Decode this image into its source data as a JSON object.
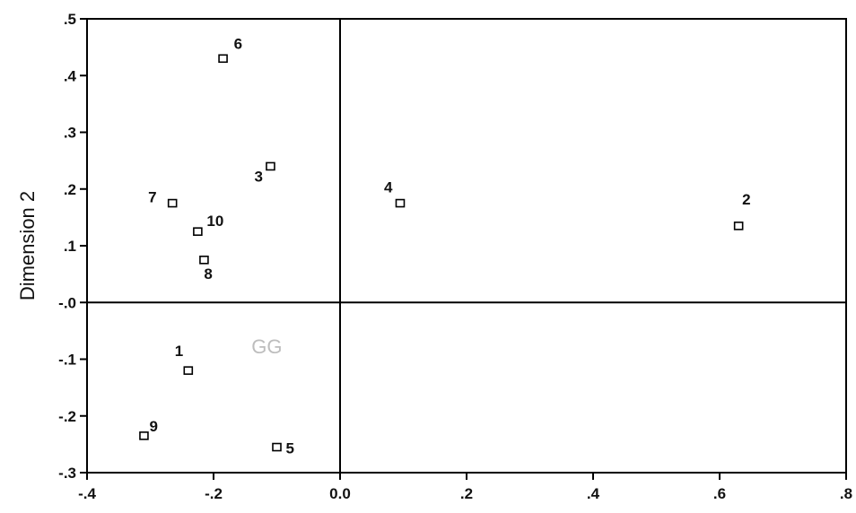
{
  "chart_data": {
    "type": "scatter",
    "title": "",
    "xlabel": "",
    "ylabel": "Dimension 2",
    "xlim": [
      -0.4,
      0.8
    ],
    "ylim": [
      -0.3,
      0.5
    ],
    "grid": false,
    "reference_lines": {
      "x": 0,
      "y": 0
    },
    "x_ticks": [
      {
        "value": -0.4,
        "label": "-.4"
      },
      {
        "value": -0.2,
        "label": "-.2"
      },
      {
        "value": 0.0,
        "label": "0.0"
      },
      {
        "value": 0.2,
        "label": ".2"
      },
      {
        "value": 0.4,
        "label": ".4"
      },
      {
        "value": 0.6,
        "label": ".6"
      },
      {
        "value": 0.8,
        "label": ".8"
      }
    ],
    "y_ticks": [
      {
        "value": 0.5,
        "label": ".5"
      },
      {
        "value": 0.4,
        "label": ".4"
      },
      {
        "value": 0.3,
        "label": ".3"
      },
      {
        "value": 0.2,
        "label": ".2"
      },
      {
        "value": 0.1,
        "label": ".1"
      },
      {
        "value": 0.0,
        "label": "-.0"
      },
      {
        "value": -0.1,
        "label": "-.1"
      },
      {
        "value": -0.2,
        "label": "-.2"
      },
      {
        "value": -0.3,
        "label": "-.3"
      }
    ],
    "points": [
      {
        "label": "1",
        "x": -0.24,
        "y": -0.12
      },
      {
        "label": "2",
        "x": 0.63,
        "y": 0.135
      },
      {
        "label": "3",
        "x": -0.11,
        "y": 0.24
      },
      {
        "label": "4",
        "x": 0.095,
        "y": 0.175
      },
      {
        "label": "5",
        "x": -0.1,
        "y": -0.255
      },
      {
        "label": "6",
        "x": -0.185,
        "y": 0.43
      },
      {
        "label": "7",
        "x": -0.265,
        "y": 0.175
      },
      {
        "label": "8",
        "x": -0.215,
        "y": 0.075
      },
      {
        "label": "9",
        "x": -0.31,
        "y": -0.235
      },
      {
        "label": "10",
        "x": -0.225,
        "y": 0.125
      }
    ],
    "annotations": [
      {
        "text": "GG",
        "x": -0.14,
        "y": -0.09
      }
    ]
  }
}
